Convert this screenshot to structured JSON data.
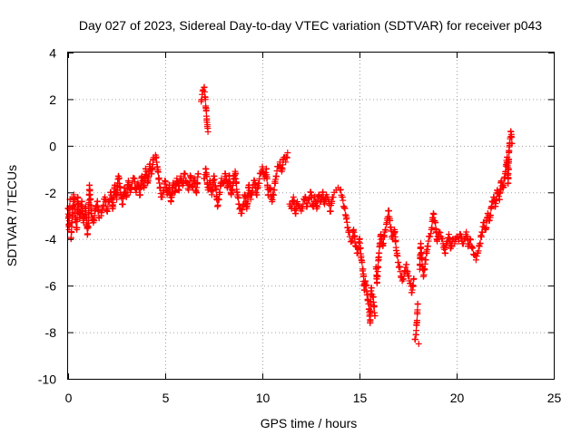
{
  "chart_data": {
    "type": "scatter",
    "title": "Day 027 of 2023, Sidereal Day-to-day VTEC variation (SDTVAR) for receiver p043",
    "xlabel": "GPS time / hours",
    "ylabel": "SDTVAR / TECUs",
    "xlim": [
      0,
      25
    ],
    "ylim": [
      -10,
      4
    ],
    "xticks": [
      0,
      5,
      10,
      15,
      20,
      25
    ],
    "yticks": [
      -10,
      -8,
      -6,
      -4,
      -2,
      0,
      2,
      4
    ],
    "grid": true,
    "marker": "+",
    "series": [
      {
        "name": "SDTVAR",
        "color": "#ff0000",
        "points": [
          [
            0.0,
            -2.7
          ],
          [
            0.05,
            -3.6
          ],
          [
            0.1,
            -2.3
          ],
          [
            0.15,
            -4.0
          ],
          [
            0.2,
            -3.3
          ],
          [
            0.3,
            -2.1
          ],
          [
            0.35,
            -2.9
          ],
          [
            0.45,
            -3.6
          ],
          [
            0.5,
            -2.2
          ],
          [
            0.6,
            -3.1
          ],
          [
            0.7,
            -2.4
          ],
          [
            0.8,
            -3.3
          ],
          [
            0.9,
            -2.6
          ],
          [
            1.0,
            -3.8
          ],
          [
            1.05,
            -3.2
          ],
          [
            1.1,
            -1.7
          ],
          [
            1.2,
            -2.9
          ],
          [
            1.3,
            -3.3
          ],
          [
            1.4,
            -2.8
          ],
          [
            1.5,
            -2.4
          ],
          [
            1.6,
            -3.1
          ],
          [
            1.7,
            -3.0
          ],
          [
            1.8,
            -2.6
          ],
          [
            1.9,
            -2.2
          ],
          [
            2.0,
            -2.8
          ],
          [
            2.1,
            -2.4
          ],
          [
            2.2,
            -2.0
          ],
          [
            2.3,
            -2.7
          ],
          [
            2.4,
            -1.7
          ],
          [
            2.5,
            -2.3
          ],
          [
            2.55,
            -1.6
          ],
          [
            2.6,
            -1.3
          ],
          [
            2.7,
            -2.0
          ],
          [
            2.8,
            -2.5
          ],
          [
            2.9,
            -1.8
          ],
          [
            3.0,
            -2.2
          ],
          [
            3.1,
            -1.5
          ],
          [
            3.2,
            -2.0
          ],
          [
            3.3,
            -1.6
          ],
          [
            3.4,
            -1.4
          ],
          [
            3.5,
            -2.0
          ],
          [
            3.6,
            -1.6
          ],
          [
            3.7,
            -2.1
          ],
          [
            3.8,
            -1.3
          ],
          [
            3.9,
            -1.8
          ],
          [
            4.0,
            -1.0
          ],
          [
            4.1,
            -1.6
          ],
          [
            4.2,
            -0.8
          ],
          [
            4.3,
            -1.2
          ],
          [
            4.4,
            -0.5
          ],
          [
            4.5,
            -0.4
          ],
          [
            4.6,
            -0.9
          ],
          [
            4.7,
            -1.6
          ],
          [
            4.8,
            -2.2
          ],
          [
            4.9,
            -2.0
          ],
          [
            5.0,
            -1.5
          ],
          [
            5.1,
            -2.1
          ],
          [
            5.2,
            -1.7
          ],
          [
            5.3,
            -2.4
          ],
          [
            5.4,
            -1.6
          ],
          [
            5.5,
            -2.0
          ],
          [
            5.6,
            -1.4
          ],
          [
            5.7,
            -1.9
          ],
          [
            5.8,
            -1.3
          ],
          [
            5.9,
            -1.7
          ],
          [
            6.0,
            -1.2
          ],
          [
            6.1,
            -1.6
          ],
          [
            6.2,
            -1.9
          ],
          [
            6.3,
            -1.3
          ],
          [
            6.4,
            -1.8
          ],
          [
            6.5,
            -1.4
          ],
          [
            6.6,
            -2.0
          ],
          [
            6.7,
            -1.2
          ],
          [
            6.85,
            1.9
          ],
          [
            6.9,
            2.2
          ],
          [
            6.95,
            2.4
          ],
          [
            7.0,
            2.5
          ],
          [
            7.05,
            2.1
          ],
          [
            7.1,
            1.6
          ],
          [
            7.15,
            1.0
          ],
          [
            7.2,
            0.6
          ],
          [
            7.0,
            -1.4
          ],
          [
            7.1,
            -1.0
          ],
          [
            7.2,
            -1.9
          ],
          [
            7.3,
            -1.5
          ],
          [
            7.4,
            -2.1
          ],
          [
            7.5,
            -1.3
          ],
          [
            7.6,
            -1.8
          ],
          [
            7.7,
            -2.6
          ],
          [
            7.8,
            -2.0
          ],
          [
            7.9,
            -1.4
          ],
          [
            8.0,
            -1.6
          ],
          [
            8.1,
            -1.2
          ],
          [
            8.2,
            -1.8
          ],
          [
            8.3,
            -1.3
          ],
          [
            8.4,
            -2.1
          ],
          [
            8.5,
            -1.6
          ],
          [
            8.6,
            -1.1
          ],
          [
            8.7,
            -2.0
          ],
          [
            8.8,
            -2.5
          ],
          [
            8.9,
            -2.9
          ],
          [
            9.0,
            -2.6
          ],
          [
            9.1,
            -2.1
          ],
          [
            9.2,
            -2.7
          ],
          [
            9.3,
            -1.7
          ],
          [
            9.4,
            -2.3
          ],
          [
            9.5,
            -1.8
          ],
          [
            9.6,
            -1.5
          ],
          [
            9.7,
            -2.1
          ],
          [
            9.8,
            -1.6
          ],
          [
            9.9,
            -1.2
          ],
          [
            10.0,
            -0.9
          ],
          [
            10.1,
            -1.4
          ],
          [
            10.2,
            -1.0
          ],
          [
            10.3,
            -2.1
          ],
          [
            10.4,
            -1.8
          ],
          [
            10.5,
            -2.4
          ],
          [
            10.6,
            -1.9
          ],
          [
            10.7,
            -1.3
          ],
          [
            10.8,
            -0.9
          ],
          [
            10.9,
            -0.7
          ],
          [
            11.0,
            -1.1
          ],
          [
            11.1,
            -0.5
          ],
          [
            11.2,
            -0.7
          ],
          [
            11.3,
            -0.3
          ],
          [
            11.4,
            -2.5
          ],
          [
            11.5,
            -2.7
          ],
          [
            11.6,
            -2.2
          ],
          [
            11.7,
            -2.9
          ],
          [
            11.8,
            -2.4
          ],
          [
            11.9,
            -2.6
          ],
          [
            12.0,
            -2.8
          ],
          [
            12.1,
            -2.5
          ],
          [
            12.2,
            -2.2
          ],
          [
            12.3,
            -2.6
          ],
          [
            12.4,
            -2.3
          ],
          [
            12.5,
            -2.0
          ],
          [
            12.6,
            -2.6
          ],
          [
            12.7,
            -2.2
          ],
          [
            12.8,
            -2.7
          ],
          [
            12.9,
            -2.1
          ],
          [
            13.0,
            -2.4
          ],
          [
            13.1,
            -2.0
          ],
          [
            13.2,
            -2.5
          ],
          [
            13.3,
            -2.1
          ],
          [
            13.4,
            -2.3
          ],
          [
            13.5,
            -2.8
          ],
          [
            13.6,
            -2.2
          ],
          [
            13.7,
            -2.0
          ],
          [
            13.8,
            -1.9
          ],
          [
            13.9,
            -1.8
          ],
          [
            14.0,
            -1.9
          ],
          [
            14.1,
            -2.2
          ],
          [
            14.2,
            -2.6
          ],
          [
            14.3,
            -3.0
          ],
          [
            14.4,
            -3.5
          ],
          [
            14.5,
            -3.9
          ],
          [
            14.6,
            -4.1
          ],
          [
            14.7,
            -3.6
          ],
          [
            14.8,
            -4.3
          ],
          [
            14.9,
            -4.6
          ],
          [
            15.0,
            -4.0
          ],
          [
            15.1,
            -4.9
          ],
          [
            15.2,
            -5.5
          ],
          [
            15.25,
            -6.2
          ],
          [
            15.3,
            -5.8
          ],
          [
            15.4,
            -6.4
          ],
          [
            15.5,
            -7.0
          ],
          [
            15.55,
            -7.6
          ],
          [
            15.6,
            -6.1
          ],
          [
            15.7,
            -6.5
          ],
          [
            15.8,
            -7.3
          ],
          [
            15.85,
            -5.2
          ],
          [
            15.9,
            -5.9
          ],
          [
            16.0,
            -4.6
          ],
          [
            16.1,
            -3.8
          ],
          [
            16.2,
            -4.3
          ],
          [
            16.3,
            -3.7
          ],
          [
            16.4,
            -3.3
          ],
          [
            16.5,
            -2.8
          ],
          [
            16.6,
            -3.5
          ],
          [
            16.7,
            -4.0
          ],
          [
            16.8,
            -3.6
          ],
          [
            16.9,
            -4.5
          ],
          [
            17.0,
            -5.0
          ],
          [
            17.1,
            -5.4
          ],
          [
            17.2,
            -5.8
          ],
          [
            17.3,
            -5.5
          ],
          [
            17.4,
            -5.1
          ],
          [
            17.5,
            -5.6
          ],
          [
            17.6,
            -5.9
          ],
          [
            17.7,
            -6.3
          ],
          [
            17.8,
            -5.7
          ],
          [
            17.85,
            -8.3
          ],
          [
            17.9,
            -8.1
          ],
          [
            17.95,
            -7.6
          ],
          [
            18.0,
            -6.8
          ],
          [
            18.05,
            -8.5
          ],
          [
            18.1,
            -5.3
          ],
          [
            18.15,
            -4.2
          ],
          [
            18.2,
            -4.8
          ],
          [
            18.3,
            -5.6
          ],
          [
            18.4,
            -4.9
          ],
          [
            18.5,
            -4.3
          ],
          [
            18.6,
            -3.9
          ],
          [
            18.7,
            -3.6
          ],
          [
            18.8,
            -2.9
          ],
          [
            18.9,
            -3.3
          ],
          [
            19.0,
            -4.1
          ],
          [
            19.1,
            -3.7
          ],
          [
            19.2,
            -3.9
          ],
          [
            19.3,
            -4.2
          ],
          [
            19.4,
            -4.6
          ],
          [
            19.5,
            -4.1
          ],
          [
            19.6,
            -3.8
          ],
          [
            19.7,
            -4.4
          ],
          [
            19.8,
            -4.0
          ],
          [
            19.9,
            -4.2
          ],
          [
            20.0,
            -3.9
          ],
          [
            20.1,
            -4.1
          ],
          [
            20.2,
            -3.8
          ],
          [
            20.3,
            -4.2
          ],
          [
            20.4,
            -4.0
          ],
          [
            20.5,
            -3.7
          ],
          [
            20.6,
            -4.3
          ],
          [
            20.7,
            -4.0
          ],
          [
            20.8,
            -4.4
          ],
          [
            20.9,
            -4.7
          ],
          [
            21.0,
            -4.9
          ],
          [
            21.1,
            -4.6
          ],
          [
            21.2,
            -4.2
          ],
          [
            21.3,
            -3.7
          ],
          [
            21.4,
            -3.3
          ],
          [
            21.5,
            -3.6
          ],
          [
            21.6,
            -2.9
          ],
          [
            21.7,
            -3.2
          ],
          [
            21.8,
            -2.6
          ],
          [
            21.9,
            -2.2
          ],
          [
            22.0,
            -2.6
          ],
          [
            22.1,
            -1.9
          ],
          [
            22.2,
            -2.3
          ],
          [
            22.3,
            -1.5
          ],
          [
            22.4,
            -1.8
          ],
          [
            22.5,
            -1.2
          ],
          [
            22.55,
            -0.8
          ],
          [
            22.6,
            -0.5
          ],
          [
            22.65,
            -1.6
          ],
          [
            22.7,
            -0.2
          ],
          [
            22.75,
            0.3
          ],
          [
            22.8,
            0.6
          ],
          [
            22.85,
            0.1
          ]
        ]
      }
    ]
  }
}
